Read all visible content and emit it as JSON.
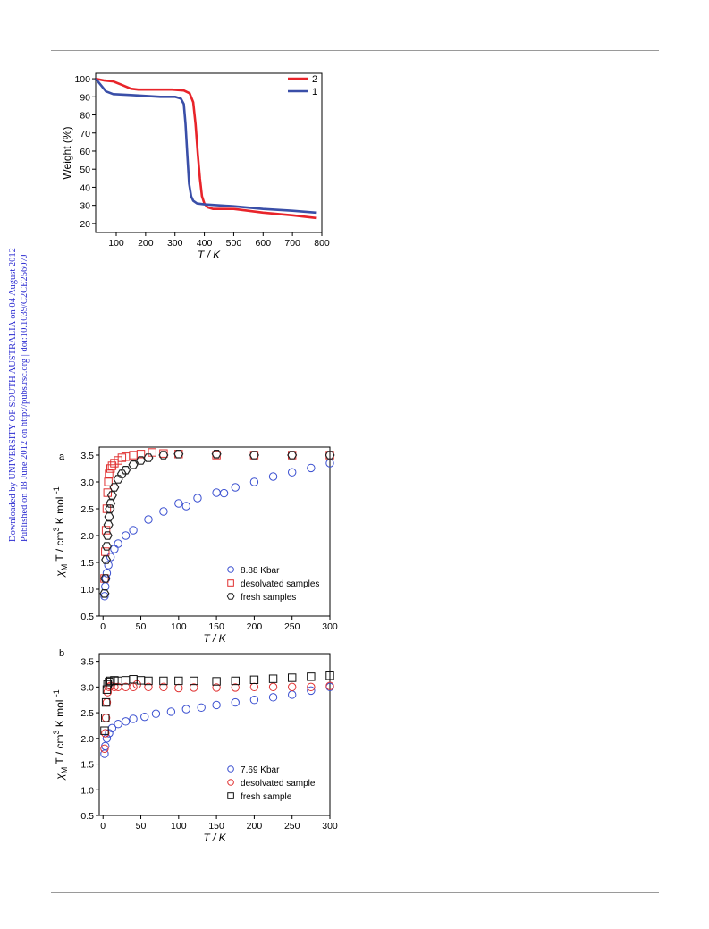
{
  "side_note": {
    "line1": "Downloaded by UNIVERSITY OF SOUTH AUSTRALIA on 04 August 2012",
    "line2": "Published on 18 June 2012 on http://pubs.rsc.org | doi:10.1039/C2CE25607J"
  },
  "chart_data": [
    {
      "type": "line",
      "xlabel": "T / K",
      "ylabel": "Weight (%)",
      "xlim": [
        30,
        800
      ],
      "ylim": [
        15,
        103
      ],
      "xticks": [
        100,
        200,
        300,
        400,
        500,
        600,
        700,
        800
      ],
      "yticks": [
        20,
        30,
        40,
        50,
        60,
        70,
        80,
        90,
        100
      ],
      "legend_position": "top-right",
      "series": [
        {
          "name": "2",
          "color": "#e8242a",
          "points": [
            [
              30,
              100
            ],
            [
              60,
              99
            ],
            [
              90,
              98.5
            ],
            [
              120,
              96.5
            ],
            [
              150,
              94.5
            ],
            [
              175,
              94
            ],
            [
              200,
              94
            ],
            [
              250,
              94
            ],
            [
              290,
              94
            ],
            [
              330,
              93.5
            ],
            [
              350,
              92
            ],
            [
              362,
              87
            ],
            [
              370,
              75
            ],
            [
              378,
              58
            ],
            [
              385,
              45
            ],
            [
              392,
              35
            ],
            [
              400,
              31
            ],
            [
              410,
              29
            ],
            [
              430,
              28
            ],
            [
              500,
              28
            ],
            [
              600,
              26
            ],
            [
              700,
              24.5
            ],
            [
              780,
              23
            ]
          ]
        },
        {
          "name": "1",
          "color": "#3a4fa8",
          "points": [
            [
              30,
              100
            ],
            [
              45,
              97
            ],
            [
              65,
              93
            ],
            [
              90,
              91.5
            ],
            [
              150,
              91
            ],
            [
              200,
              90.5
            ],
            [
              250,
              90
            ],
            [
              300,
              90
            ],
            [
              320,
              89
            ],
            [
              330,
              86
            ],
            [
              336,
              75
            ],
            [
              342,
              58
            ],
            [
              348,
              42
            ],
            [
              355,
              35
            ],
            [
              362,
              32.5
            ],
            [
              375,
              31
            ],
            [
              400,
              30.5
            ],
            [
              500,
              29.5
            ],
            [
              600,
              28
            ],
            [
              700,
              27
            ],
            [
              780,
              26
            ]
          ]
        }
      ]
    },
    {
      "type": "scatter",
      "panel_label": "a",
      "xlabel": "T / K",
      "ylabel_parts": [
        "χ",
        "M",
        " T / cm",
        "3",
        " K mol ",
        "-1"
      ],
      "xlim": [
        -5,
        300
      ],
      "ylim": [
        0.5,
        3.65
      ],
      "xticks": [
        0,
        50,
        100,
        150,
        200,
        250,
        300
      ],
      "yticks": [
        0.5,
        1.0,
        1.5,
        2.0,
        2.5,
        3.0,
        3.5
      ],
      "legend_position": "bottom-right",
      "series": [
        {
          "name": "8.88 Kbar",
          "color": "#3a4fd0",
          "marker": "circle",
          "points": [
            [
              2,
              0.87
            ],
            [
              3,
              1.05
            ],
            [
              4,
              1.2
            ],
            [
              5,
              1.3
            ],
            [
              7,
              1.45
            ],
            [
              10,
              1.6
            ],
            [
              15,
              1.75
            ],
            [
              20,
              1.85
            ],
            [
              30,
              2.0
            ],
            [
              40,
              2.1
            ],
            [
              60,
              2.3
            ],
            [
              80,
              2.45
            ],
            [
              100,
              2.6
            ],
            [
              110,
              2.55
            ],
            [
              125,
              2.7
            ],
            [
              150,
              2.8
            ],
            [
              160,
              2.79
            ],
            [
              175,
              2.9
            ],
            [
              200,
              3.0
            ],
            [
              225,
              3.1
            ],
            [
              250,
              3.18
            ],
            [
              275,
              3.26
            ],
            [
              300,
              3.35
            ]
          ]
        },
        {
          "name": "desolvated samples",
          "color": "#e03030",
          "marker": "square",
          "points": [
            [
              2,
              1.2
            ],
            [
              3,
              1.7
            ],
            [
              4,
              2.1
            ],
            [
              5,
              2.5
            ],
            [
              6,
              2.8
            ],
            [
              7,
              3.0
            ],
            [
              8,
              3.15
            ],
            [
              10,
              3.25
            ],
            [
              12,
              3.3
            ],
            [
              15,
              3.35
            ],
            [
              20,
              3.4
            ],
            [
              25,
              3.45
            ],
            [
              30,
              3.47
            ],
            [
              40,
              3.5
            ],
            [
              50,
              3.52
            ],
            [
              65,
              3.55
            ],
            [
              80,
              3.53
            ],
            [
              100,
              3.52
            ],
            [
              150,
              3.5
            ],
            [
              200,
              3.5
            ],
            [
              250,
              3.5
            ],
            [
              300,
              3.5
            ]
          ]
        },
        {
          "name": "fresh samples",
          "color": "#222222",
          "marker": "hexagon",
          "points": [
            [
              2,
              0.92
            ],
            [
              3,
              1.2
            ],
            [
              4,
              1.55
            ],
            [
              5,
              1.8
            ],
            [
              6,
              2.0
            ],
            [
              7,
              2.2
            ],
            [
              8,
              2.35
            ],
            [
              9,
              2.5
            ],
            [
              10,
              2.6
            ],
            [
              12,
              2.75
            ],
            [
              15,
              2.9
            ],
            [
              20,
              3.05
            ],
            [
              25,
              3.15
            ],
            [
              30,
              3.22
            ],
            [
              40,
              3.32
            ],
            [
              50,
              3.4
            ],
            [
              60,
              3.45
            ],
            [
              80,
              3.5
            ],
            [
              100,
              3.52
            ],
            [
              150,
              3.52
            ],
            [
              200,
              3.5
            ],
            [
              250,
              3.5
            ],
            [
              300,
              3.5
            ]
          ]
        }
      ]
    },
    {
      "type": "scatter",
      "panel_label": "b",
      "xlabel": "T / K",
      "ylabel_parts": [
        "χ",
        "M",
        " T / cm",
        "3",
        " K mol ",
        "-1"
      ],
      "xlim": [
        -5,
        300
      ],
      "ylim": [
        0.5,
        3.65
      ],
      "xticks": [
        0,
        50,
        100,
        150,
        200,
        250,
        300
      ],
      "yticks": [
        0.5,
        1.0,
        1.5,
        2.0,
        2.5,
        3.0,
        3.5
      ],
      "legend_position": "bottom-right",
      "series": [
        {
          "name": "7.69 Kbar",
          "color": "#3a4fd0",
          "marker": "circle",
          "points": [
            [
              2,
              1.7
            ],
            [
              3,
              1.85
            ],
            [
              5,
              2.0
            ],
            [
              8,
              2.1
            ],
            [
              12,
              2.2
            ],
            [
              20,
              2.28
            ],
            [
              30,
              2.33
            ],
            [
              40,
              2.38
            ],
            [
              55,
              2.42
            ],
            [
              70,
              2.48
            ],
            [
              90,
              2.52
            ],
            [
              110,
              2.57
            ],
            [
              130,
              2.6
            ],
            [
              150,
              2.65
            ],
            [
              175,
              2.7
            ],
            [
              200,
              2.75
            ],
            [
              225,
              2.8
            ],
            [
              250,
              2.85
            ],
            [
              275,
              2.93
            ],
            [
              300,
              3.0
            ]
          ]
        },
        {
          "name": "desolvated sample",
          "color": "#e03030",
          "marker": "circle",
          "points": [
            [
              2,
              1.8
            ],
            [
              3,
              2.1
            ],
            [
              4,
              2.4
            ],
            [
              5,
              2.7
            ],
            [
              6,
              2.9
            ],
            [
              8,
              3.0
            ],
            [
              10,
              3.02
            ],
            [
              15,
              3.0
            ],
            [
              20,
              3.0
            ],
            [
              30,
              3.0
            ],
            [
              40,
              3.0
            ],
            [
              45,
              3.05
            ],
            [
              60,
              3.0
            ],
            [
              80,
              3.0
            ],
            [
              100,
              2.98
            ],
            [
              120,
              2.99
            ],
            [
              150,
              2.99
            ],
            [
              175,
              2.99
            ],
            [
              200,
              3.0
            ],
            [
              225,
              3.0
            ],
            [
              250,
              3.0
            ],
            [
              275,
              3.0
            ],
            [
              300,
              3.02
            ]
          ]
        },
        {
          "name": "fresh sample",
          "color": "#111111",
          "marker": "square",
          "points": [
            [
              2,
              2.15
            ],
            [
              3,
              2.4
            ],
            [
              4,
              2.7
            ],
            [
              5,
              2.95
            ],
            [
              6,
              3.05
            ],
            [
              8,
              3.1
            ],
            [
              10,
              3.12
            ],
            [
              15,
              3.13
            ],
            [
              20,
              3.12
            ],
            [
              30,
              3.13
            ],
            [
              40,
              3.15
            ],
            [
              50,
              3.13
            ],
            [
              60,
              3.12
            ],
            [
              80,
              3.12
            ],
            [
              100,
              3.12
            ],
            [
              120,
              3.12
            ],
            [
              150,
              3.11
            ],
            [
              175,
              3.12
            ],
            [
              200,
              3.14
            ],
            [
              225,
              3.16
            ],
            [
              250,
              3.18
            ],
            [
              275,
              3.2
            ],
            [
              300,
              3.22
            ]
          ]
        }
      ]
    }
  ]
}
